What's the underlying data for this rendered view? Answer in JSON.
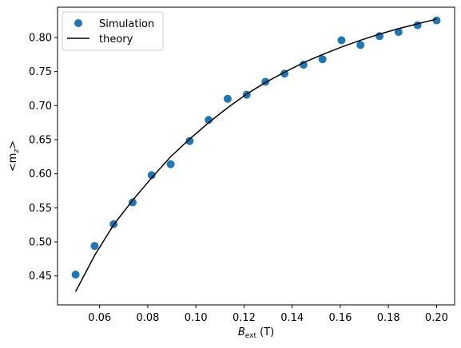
{
  "chart_data": {
    "type": "scatter",
    "xlabel_main": "B",
    "xlabel_sub": "ext",
    "xlabel_unit": " (T)",
    "ylabel_main": "<m",
    "ylabel_sub": "z",
    "ylabel_end": ">",
    "xlim": [
      0.0425,
      0.2075
    ],
    "ylim": [
      0.4075,
      0.8445
    ],
    "xticks": [
      0.06,
      0.08,
      0.1,
      0.12,
      0.14,
      0.16,
      0.18,
      0.2
    ],
    "xtick_labels": [
      "0.06",
      "0.08",
      "0.10",
      "0.12",
      "0.14",
      "0.16",
      "0.18",
      "0.20"
    ],
    "yticks": [
      0.45,
      0.5,
      0.55,
      0.6,
      0.65,
      0.7,
      0.75,
      0.8
    ],
    "ytick_labels": [
      "0.45",
      "0.50",
      "0.55",
      "0.60",
      "0.65",
      "0.70",
      "0.75",
      "0.80"
    ],
    "grid": false,
    "legend_position": "top-left",
    "series": [
      {
        "name": "Simulation",
        "kind": "markers",
        "color": "#1f77b4",
        "x": [
          0.05,
          0.0579,
          0.0658,
          0.0737,
          0.0816,
          0.0895,
          0.0974,
          0.1053,
          0.1132,
          0.1211,
          0.1289,
          0.1368,
          0.1447,
          0.1526,
          0.1605,
          0.1684,
          0.1763,
          0.1842,
          0.1921,
          0.2
        ],
        "y": [
          0.452,
          0.494,
          0.526,
          0.558,
          0.598,
          0.614,
          0.648,
          0.679,
          0.71,
          0.716,
          0.735,
          0.747,
          0.76,
          0.768,
          0.796,
          0.789,
          0.802,
          0.808,
          0.818,
          0.825
        ]
      },
      {
        "name": "theory",
        "kind": "line",
        "color": "#000000",
        "x": [
          0.05,
          0.0579,
          0.0658,
          0.0737,
          0.0816,
          0.0895,
          0.0974,
          0.1053,
          0.1132,
          0.1211,
          0.1289,
          0.1368,
          0.1447,
          0.1526,
          0.1605,
          0.1684,
          0.1763,
          0.1842,
          0.1921,
          0.2
        ],
        "y": [
          0.427,
          0.48,
          0.525,
          0.561,
          0.594,
          0.625,
          0.651,
          0.675,
          0.697,
          0.717,
          0.734,
          0.749,
          0.763,
          0.775,
          0.786,
          0.796,
          0.805,
          0.813,
          0.82,
          0.827
        ]
      }
    ]
  }
}
